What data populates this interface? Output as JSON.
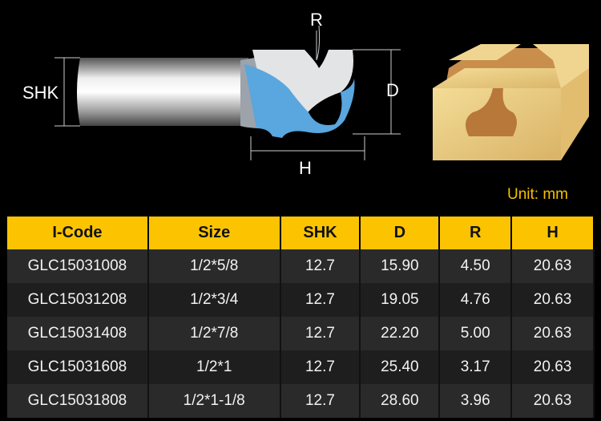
{
  "diagram": {
    "labels": {
      "shk": "SHK",
      "r": "R",
      "d": "D",
      "h": "H"
    }
  },
  "unit": "Unit: mm",
  "table": {
    "headers": [
      "I-Code",
      "Size",
      "SHK",
      "D",
      "R",
      "H"
    ],
    "rows": [
      [
        "GLC15031008",
        "1/2*5/8",
        "12.7",
        "15.90",
        "4.50",
        "20.63"
      ],
      [
        "GLC15031208",
        "1/2*3/4",
        "12.7",
        "19.05",
        "4.76",
        "20.63"
      ],
      [
        "GLC15031408",
        "1/2*7/8",
        "12.7",
        "22.20",
        "5.00",
        "20.63"
      ],
      [
        "GLC15031608",
        "1/2*1",
        "12.7",
        "25.40",
        "3.17",
        "20.63"
      ],
      [
        "GLC15031808",
        "1/2*1-1/8",
        "12.7",
        "28.60",
        "3.96",
        "20.63"
      ]
    ]
  },
  "colors": {
    "accent": "#fcc400",
    "blade": "#5aa6de"
  }
}
